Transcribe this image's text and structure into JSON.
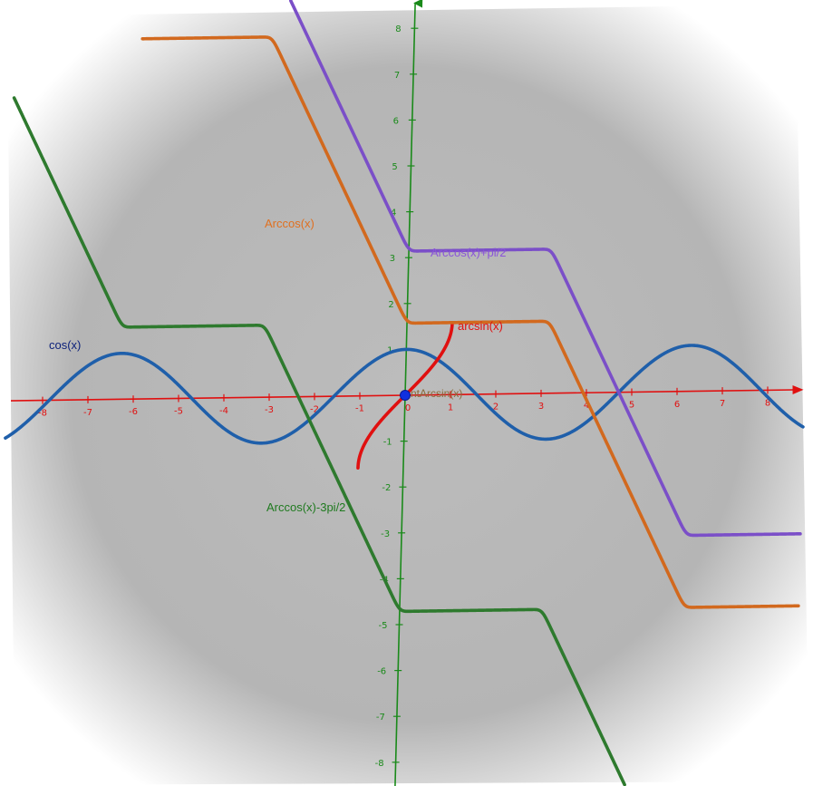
{
  "chart_data": {
    "type": "line",
    "title": "",
    "xlabel": "",
    "ylabel": "",
    "xlim": [
      -8,
      8
    ],
    "ylim": [
      -8,
      8
    ],
    "x_ticks": [
      "-8",
      "-7",
      "-6",
      "-5",
      "-4",
      "-3",
      "-2",
      "-1",
      "0",
      "1",
      "2",
      "3",
      "4",
      "5",
      "6",
      "7",
      "8"
    ],
    "y_ticks": [
      "-8",
      "-7",
      "-6",
      "-5",
      "-4",
      "-3",
      "-2",
      "-1",
      "1",
      "2",
      "3",
      "4",
      "5",
      "6",
      "7",
      "8"
    ],
    "grid": false,
    "series": [
      {
        "name": "cos(x)",
        "expression": "cos(x)",
        "color": "#1f5faa",
        "label_color": "#0a1f7a",
        "domain": [
          -8.8,
          8.8
        ]
      },
      {
        "name": "arcsin(x)",
        "expression": "arcsin(x)",
        "color": "#e01010",
        "label_color": "#e01010",
        "domain": [
          -1,
          1
        ]
      },
      {
        "name": "Arccos(x)",
        "expression": "arccos(cos(x)) - x + pi/2",
        "color": "#d2691e",
        "label_color": "#e07020",
        "domain": [
          -6,
          8.8
        ]
      },
      {
        "name": "Arccos(x)+pi/2",
        "expression": "arccos(cos(x)) - x + pi",
        "color": "#7b4fc8",
        "label_color": "#8a55d8",
        "domain": [
          -4,
          8.8
        ]
      },
      {
        "name": "Arccos(x)-3pi/2",
        "expression": "arccos(cos(x)) - x - 3pi/2",
        "color": "#2e7a2e",
        "label_color": "#1f7a1f",
        "domain": [
          -8.8,
          8.8
        ]
      }
    ],
    "point": {
      "label": "ntArcsin(x)",
      "x": 0,
      "y": 0,
      "color": "#1030e0"
    },
    "axis_colors": {
      "x": "#e01010",
      "y": "#1a8a1a"
    },
    "background": {
      "inner": "#bcbcbc",
      "outer": "#ffffff"
    }
  }
}
